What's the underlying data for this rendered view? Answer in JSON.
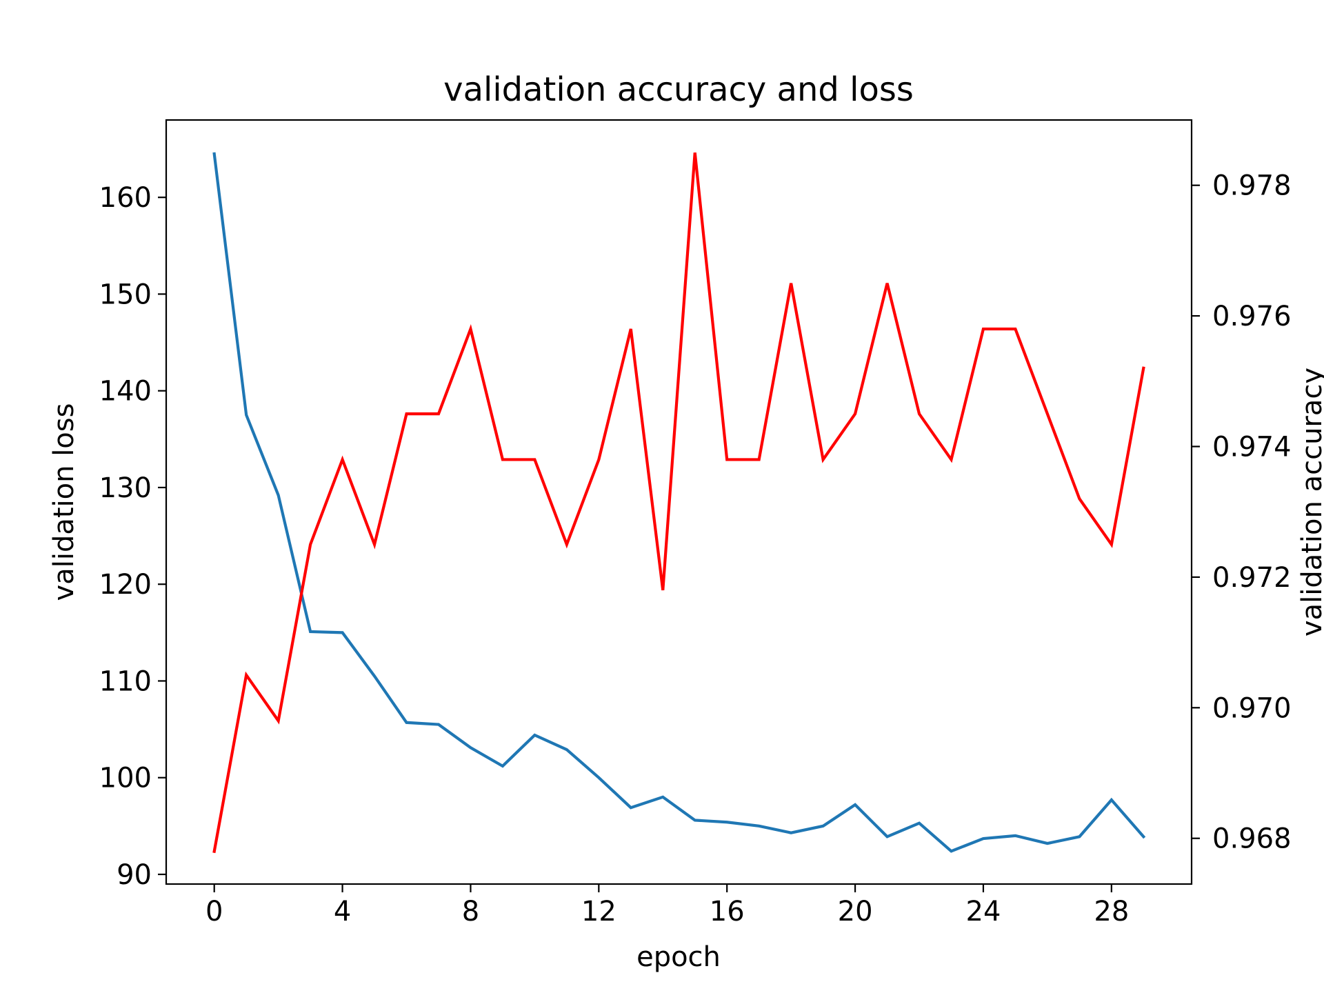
{
  "chart_data": {
    "type": "line",
    "title": "validation accuracy and loss",
    "xlabel": "epoch",
    "ylabel_left": "validation loss",
    "ylabel_right": "validation accuracy",
    "x": [
      0,
      1,
      2,
      3,
      4,
      5,
      6,
      7,
      8,
      9,
      10,
      11,
      12,
      13,
      14,
      15,
      16,
      17,
      18,
      19,
      20,
      21,
      22,
      23,
      24,
      25,
      26,
      27,
      28,
      29
    ],
    "x_ticks": [
      0,
      4,
      8,
      12,
      16,
      20,
      24,
      28
    ],
    "xlim": [
      -1.5,
      30.5
    ],
    "ylim_left": [
      89,
      168
    ],
    "ylim_right": [
      0.9673,
      0.979
    ],
    "y_ticks_left": [
      90,
      100,
      110,
      120,
      130,
      140,
      150,
      160
    ],
    "y_ticks_right": [
      0.968,
      0.97,
      0.972,
      0.974,
      0.976,
      0.978
    ],
    "grid": false,
    "series": [
      {
        "axis": "left",
        "color": "#1f77b4",
        "values": [
          164.5,
          137.5,
          129.2,
          115.1,
          115.0,
          110.5,
          105.7,
          105.5,
          103.1,
          101.2,
          104.4,
          102.9,
          100.0,
          96.9,
          98.0,
          95.6,
          95.4,
          95.0,
          94.3,
          95.0,
          97.2,
          93.9,
          95.3,
          92.4,
          93.7,
          94.0,
          93.2,
          93.9,
          97.7,
          93.9
        ]
      },
      {
        "axis": "right",
        "color": "#ff0000",
        "values": [
          0.9678,
          0.9705,
          0.9698,
          0.9725,
          0.9738,
          0.9725,
          0.9745,
          0.9745,
          0.9758,
          0.9738,
          0.9738,
          0.9725,
          0.9738,
          0.9758,
          0.9718,
          0.9785,
          0.9738,
          0.9738,
          0.9765,
          0.9738,
          0.9745,
          0.9765,
          0.9745,
          0.9738,
          0.9758,
          0.9758,
          0.9745,
          0.9732,
          0.9725,
          0.9752
        ]
      }
    ]
  }
}
